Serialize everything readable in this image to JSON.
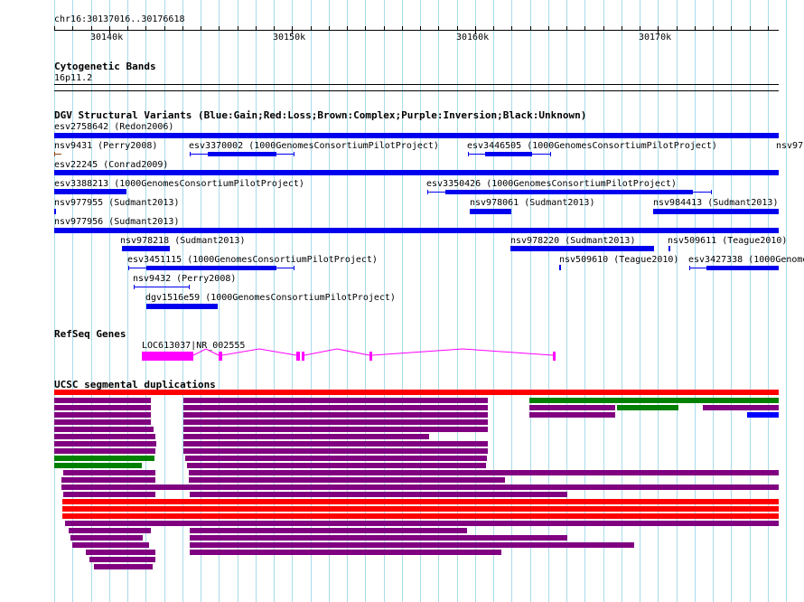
{
  "ruler": {
    "locus": "chr16:30137016..30176618",
    "ticks": [
      "30140k",
      "30150k",
      "30160k",
      "30170k"
    ]
  },
  "tracks": {
    "cytoband": {
      "title": "Cytogenetic Bands",
      "band": "16p11.2"
    },
    "dgv": {
      "title": "DGV Structural Variants (Blue:Gain;Red:Loss;Brown:Complex;Purple:Inversion;Black:Unknown)",
      "labels": [
        "esv2758642 (Redon2006)",
        "nsv9431 (Perry2008)",
        "esv3370002 (1000GenomesConsortiumPilotProject)",
        "esv3446505 (1000GenomesConsortiumPilotProject)",
        "nsv97",
        "esv22245 (Conrad2009)",
        "esv3388213 (1000GenomesConsortiumPilotProject)",
        "esv3350426 (1000GenomesConsortiumPilotProject)",
        "nsv977955 (Sudmant2013)",
        "nsv978061 (Sudmant2013)",
        "nsv984413 (Sudmant2013)",
        "nsv977956 (Sudmant2013)",
        "nsv978218 (Sudmant2013)",
        "nsv978220 (Sudmant2013)",
        "nsv509611 (Teague2010)",
        "esv3451115 (1000GenomesConsortiumPilotProject)",
        "nsv509610 (Teague2010)",
        "esv3427338 (1000Genome",
        "nsv9432 (Perry2008)",
        "dgv1516e59 (1000GenomesConsortiumPilotProject)"
      ]
    },
    "refseq": {
      "title": "RefSeq Genes",
      "gene_label": "LOC613037|NR_002555"
    },
    "segdups": {
      "title": "UCSC segmental duplications"
    }
  },
  "colors": {
    "gain": "#0000ee",
    "loss": "#ff0000",
    "complex": "#8b4513",
    "gene": "#ff00ff",
    "segdup_purple": "#800080",
    "segdup_green": "#008000",
    "segdup_red": "#ff0000",
    "segdup_blue": "#0000ff",
    "grid": "#a9dbea"
  }
}
